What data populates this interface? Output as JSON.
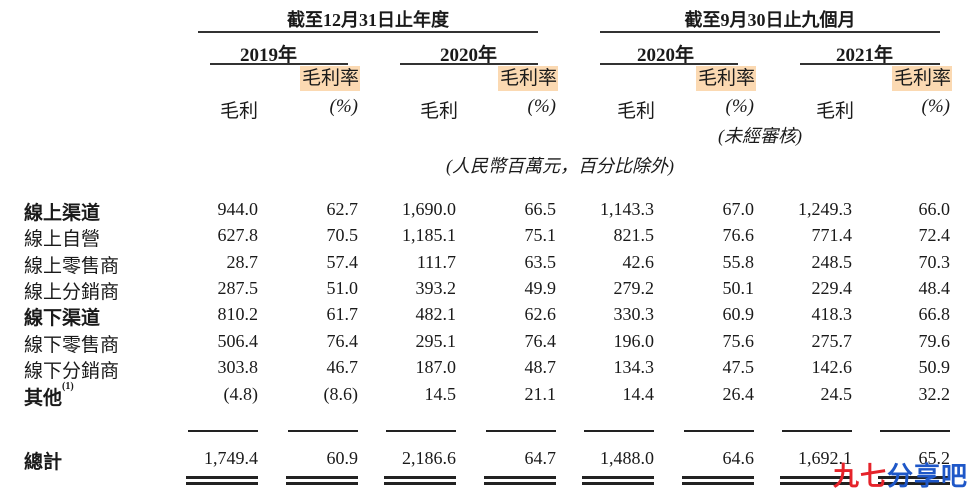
{
  "periods": [
    {
      "label": "截至12月31日止年度"
    },
    {
      "label": "截至9月30日止九個月"
    }
  ],
  "years": [
    "2019年",
    "2020年",
    "2020年",
    "2021年"
  ],
  "col_headers": {
    "gross_profit": "毛利",
    "margin": "毛利率",
    "pct": "(%)"
  },
  "unaudited_note": "(未經審核)",
  "unit_note": "(人民幣百萬元，百分比除外)",
  "rows": [
    {
      "label": "線上渠道",
      "bold": true,
      "values": [
        "944.0",
        "62.7",
        "1,690.0",
        "66.5",
        "1,143.3",
        "67.0",
        "1,249.3",
        "66.0"
      ]
    },
    {
      "label": "線上自營",
      "bold": false,
      "values": [
        "627.8",
        "70.5",
        "1,185.1",
        "75.1",
        "821.5",
        "76.6",
        "771.4",
        "72.4"
      ]
    },
    {
      "label": "線上零售商",
      "bold": false,
      "values": [
        "28.7",
        "57.4",
        "111.7",
        "63.5",
        "42.6",
        "55.8",
        "248.5",
        "70.3"
      ]
    },
    {
      "label": "線上分銷商",
      "bold": false,
      "values": [
        "287.5",
        "51.0",
        "393.2",
        "49.9",
        "279.2",
        "50.1",
        "229.4",
        "48.4"
      ]
    },
    {
      "label": "線下渠道",
      "bold": true,
      "values": [
        "810.2",
        "61.7",
        "482.1",
        "62.6",
        "330.3",
        "60.9",
        "418.3",
        "66.8"
      ]
    },
    {
      "label": "線下零售商",
      "bold": false,
      "values": [
        "506.4",
        "76.4",
        "295.1",
        "76.4",
        "196.0",
        "75.6",
        "275.7",
        "79.6"
      ]
    },
    {
      "label": "線下分銷商",
      "bold": false,
      "values": [
        "303.8",
        "46.7",
        "187.0",
        "48.7",
        "134.3",
        "47.5",
        "142.6",
        "50.9"
      ]
    },
    {
      "label": "其他",
      "sup": "(1)",
      "bold": true,
      "values": [
        "(4.8)",
        "(8.6)",
        "14.5",
        "21.1",
        "14.4",
        "26.4",
        "24.5",
        "32.2"
      ]
    }
  ],
  "total": {
    "label": "總計",
    "values": [
      "1,749.4",
      "60.9",
      "2,186.6",
      "64.7",
      "1,488.0",
      "64.6",
      "1,692.1",
      "65.2"
    ]
  },
  "watermark": {
    "part1": "九七",
    "part2": "分享吧"
  }
}
